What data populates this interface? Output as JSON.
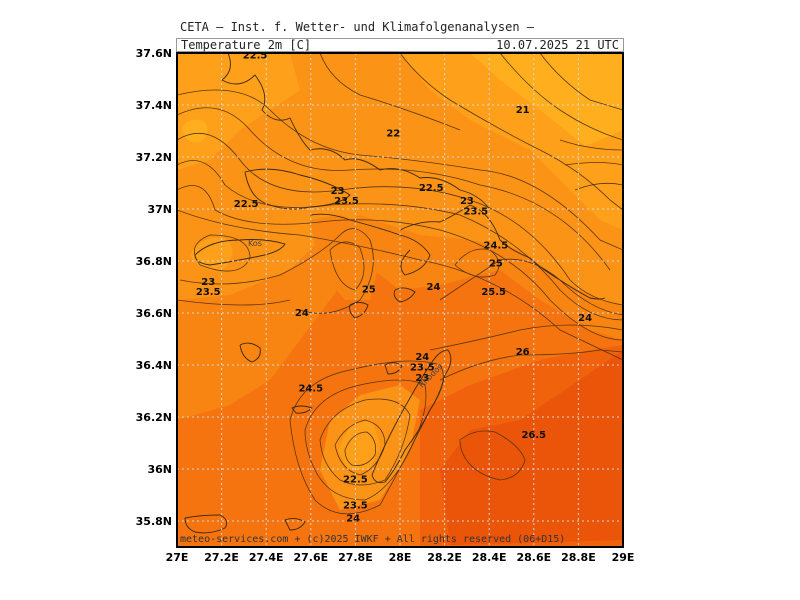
{
  "header": {
    "agency": "CETA — Inst. f. Wetter- und Klimafolgenanalysen —",
    "parameter": "Temperature 2m [C]",
    "valid_time": "10.07.2025 21 UTC"
  },
  "footer": "meteo-services.com + (c)2025 IWKF + All rights reserved (06+D15)",
  "axes": {
    "x_ticks": [
      "27E",
      "27.2E",
      "27.4E",
      "27.6E",
      "27.8E",
      "28E",
      "28.2E",
      "28.4E",
      "28.6E",
      "28.8E",
      "29E"
    ],
    "y_ticks": [
      "37.6N",
      "37.4N",
      "37.2N",
      "37N",
      "36.8N",
      "36.6N",
      "36.4N",
      "36.2N",
      "36N",
      "35.8N"
    ]
  },
  "places": [
    "Kos",
    "Rhodos"
  ],
  "contour_labels": [
    {
      "text": "22.5",
      "lon": 27.35,
      "lat": 37.59
    },
    {
      "text": "22",
      "lon": 27.97,
      "lat": 37.29
    },
    {
      "text": "21",
      "lon": 28.55,
      "lat": 37.38
    },
    {
      "text": "23",
      "lon": 27.72,
      "lat": 37.07
    },
    {
      "text": "23.5",
      "lon": 27.76,
      "lat": 37.03
    },
    {
      "text": "22.5",
      "lon": 28.14,
      "lat": 37.08
    },
    {
      "text": "23",
      "lon": 28.3,
      "lat": 37.03
    },
    {
      "text": "23.5",
      "lon": 28.34,
      "lat": 36.99
    },
    {
      "text": "22.5",
      "lon": 27.31,
      "lat": 37.02
    },
    {
      "text": "24.5",
      "lon": 28.43,
      "lat": 36.86
    },
    {
      "text": "25",
      "lon": 28.43,
      "lat": 36.79
    },
    {
      "text": "25",
      "lon": 27.86,
      "lat": 36.69
    },
    {
      "text": "24",
      "lon": 28.15,
      "lat": 36.7
    },
    {
      "text": "25.5",
      "lon": 28.42,
      "lat": 36.68
    },
    {
      "text": "23",
      "lon": 27.14,
      "lat": 36.72
    },
    {
      "text": "23.5",
      "lon": 27.14,
      "lat": 36.68
    },
    {
      "text": "24",
      "lon": 27.56,
      "lat": 36.6
    },
    {
      "text": "24",
      "lon": 28.83,
      "lat": 36.58
    },
    {
      "text": "26",
      "lon": 28.55,
      "lat": 36.45
    },
    {
      "text": "24",
      "lon": 28.1,
      "lat": 36.43
    },
    {
      "text": "23.5",
      "lon": 28.1,
      "lat": 36.39
    },
    {
      "text": "23",
      "lon": 28.1,
      "lat": 36.35
    },
    {
      "text": "24.5",
      "lon": 27.6,
      "lat": 36.31
    },
    {
      "text": "26.5",
      "lon": 28.6,
      "lat": 36.13
    },
    {
      "text": "22.5",
      "lon": 27.8,
      "lat": 35.96
    },
    {
      "text": "23.5",
      "lon": 27.8,
      "lat": 35.86
    },
    {
      "text": "24",
      "lon": 27.79,
      "lat": 35.81
    }
  ],
  "colors": {
    "t21": "#ffae1e",
    "t22": "#ffa01a",
    "t23": "#fb9316",
    "t24": "#f88412",
    "t25": "#f5740f",
    "t26": "#f0620c",
    "t27": "#ea5509",
    "contour": "#5a3510",
    "grid": "#d8d8d8"
  }
}
